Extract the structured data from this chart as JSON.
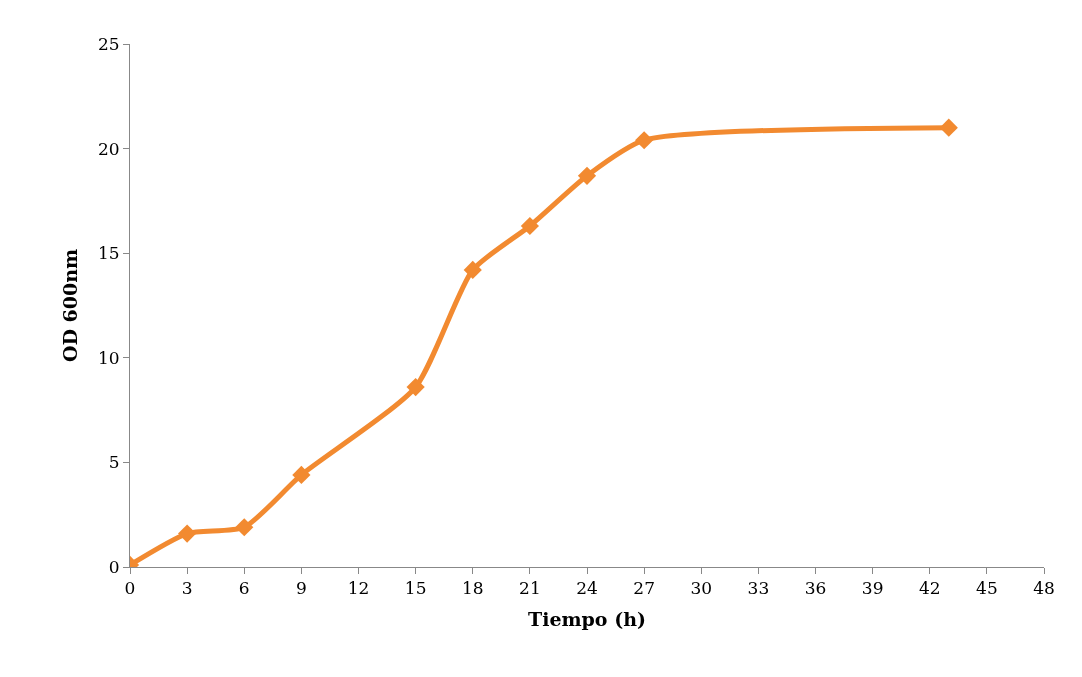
{
  "chart_data": {
    "type": "line",
    "xlabel": "Tiempo (h)",
    "ylabel": "OD 600nm",
    "x": [
      0,
      3,
      6,
      9,
      15,
      18,
      21,
      24,
      27,
      43
    ],
    "series": [
      {
        "color": "#f28a30",
        "values": [
          0.1,
          1.6,
          1.9,
          4.4,
          8.6,
          14.2,
          16.3,
          18.7,
          20.4,
          21.0
        ]
      }
    ],
    "xlim": [
      0,
      48
    ],
    "xticks": [
      0,
      3,
      6,
      9,
      12,
      15,
      18,
      21,
      24,
      27,
      30,
      33,
      36,
      39,
      42,
      45,
      48
    ],
    "ylim": [
      0,
      25
    ],
    "yticks": [
      0,
      5,
      10,
      15,
      20,
      25
    ],
    "marker": "diamond",
    "line_style": "solid"
  }
}
